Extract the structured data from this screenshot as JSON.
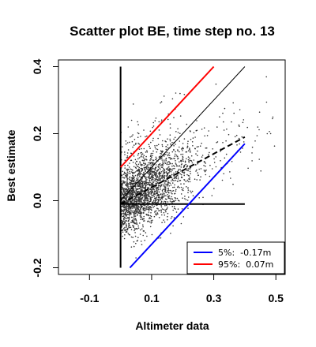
{
  "chart_data": {
    "type": "scatter",
    "title": "Scatter plot BE, time step no. 13",
    "xlabel": "Altimeter data",
    "ylabel": "Best estimate",
    "xlim": [
      -0.2,
      0.53
    ],
    "ylim": [
      -0.22,
      0.42
    ],
    "xticks": [
      "-0.1",
      "0.1",
      "0.3",
      "0.5"
    ],
    "xtick_values": [
      -0.1,
      0.1,
      0.3,
      0.5
    ],
    "yticks": [
      "-0.2",
      "0.0",
      "0.2",
      "0.4"
    ],
    "ytick_values": [
      -0.2,
      0.0,
      0.2,
      0.4
    ],
    "grid": false,
    "legend_position": "bottom-right",
    "scatter_color": "#333333",
    "lines": [
      {
        "style": "solid-thick",
        "color": "#000000",
        "points": [
          [
            0.0,
            -0.2
          ],
          [
            0.0,
            0.4
          ]
        ]
      },
      {
        "style": "solid-thick",
        "color": "#000000",
        "points": [
          [
            0.0,
            -0.01
          ],
          [
            0.4,
            -0.01
          ]
        ]
      },
      {
        "style": "solid-thin",
        "color": "#000000",
        "points": [
          [
            0.0,
            0.0
          ],
          [
            0.4,
            0.4
          ]
        ]
      },
      {
        "style": "dashed",
        "color": "#000000",
        "points": [
          [
            0.0,
            -0.01
          ],
          [
            0.4,
            0.19
          ]
        ]
      },
      {
        "style": "solid",
        "color": "#ff0000",
        "points": [
          [
            0.0,
            0.1
          ],
          [
            0.3,
            0.4
          ]
        ]
      },
      {
        "style": "solid",
        "color": "#0000ff",
        "points": [
          [
            0.03,
            -0.2
          ],
          [
            0.4,
            0.17
          ]
        ]
      }
    ],
    "series": [
      {
        "name": "5%:  -0.17m",
        "color": "#0000ff"
      },
      {
        "name": "95%:  0.07m",
        "color": "#ff0000"
      }
    ]
  }
}
